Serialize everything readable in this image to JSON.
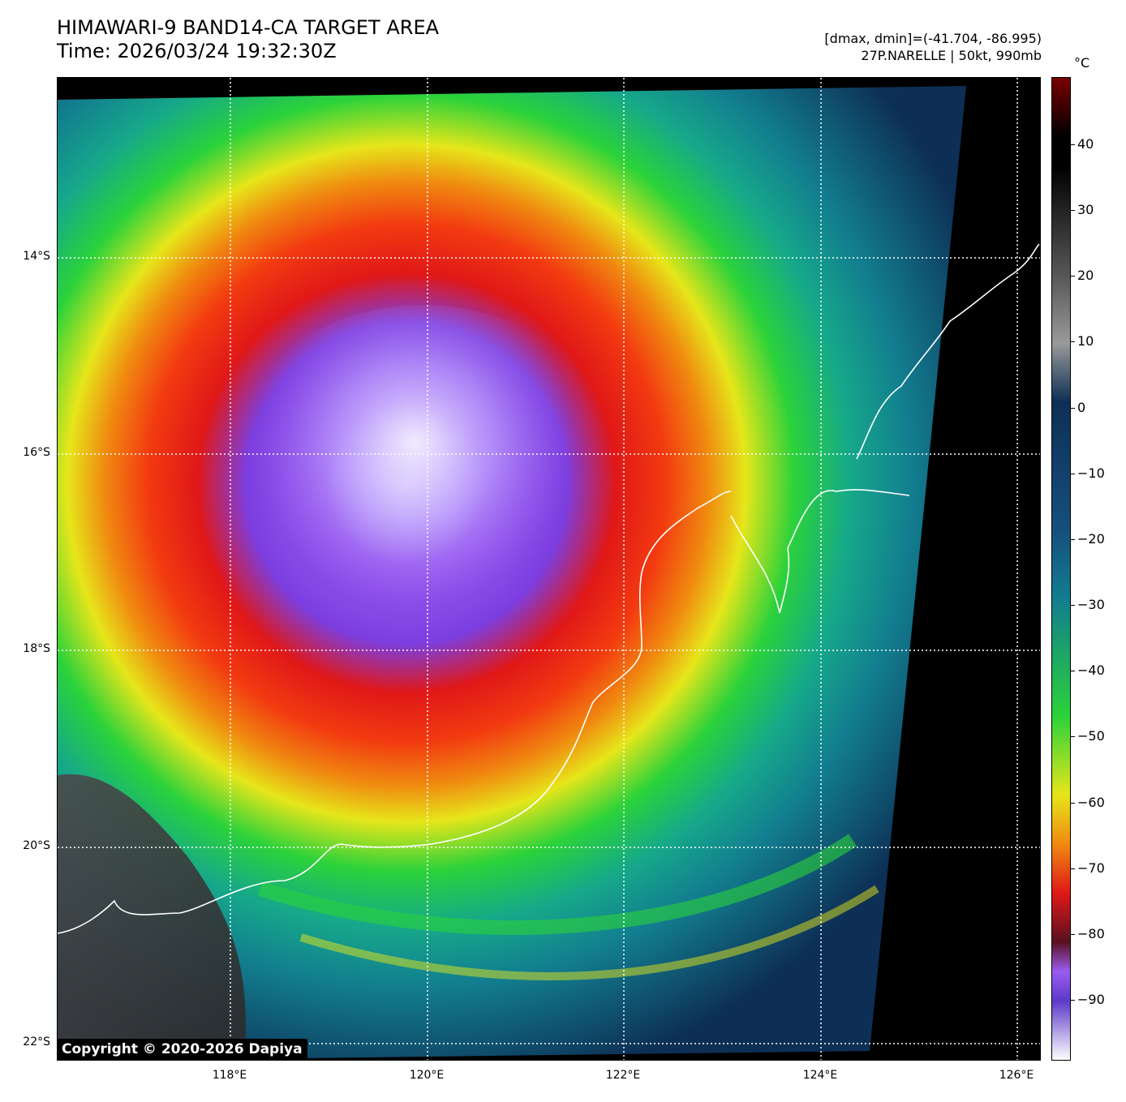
{
  "header": {
    "title_line1": "HIMAWARI-9 BAND14-CA TARGET AREA",
    "title_line2": "Time: 2026/03/24 19:32:30Z",
    "range_text": "[dmax, dmin]=(-41.704, -86.995)",
    "storm_text": "27P.NARELLE | 50kt, 990mb"
  },
  "map": {
    "lat_ticks": [
      "14°S",
      "16°S",
      "18°S",
      "20°S",
      "22°S"
    ],
    "lon_ticks": [
      "118°E",
      "120°E",
      "122°E",
      "124°E",
      "126°E"
    ],
    "storm": "27P.NARELLE",
    "intensity_kt": 50,
    "pressure_mb": 990
  },
  "colorbar": {
    "unit": "°C",
    "ticks": [
      "40",
      "30",
      "20",
      "10",
      "0",
      "−10",
      "−20",
      "−30",
      "−40",
      "−50",
      "−60",
      "−70",
      "−80",
      "−90"
    ],
    "colors": {
      "warm_top": "#7a0000",
      "black": "#000000",
      "gray": "#9a9a9a",
      "dark_blue": "#0d2f55",
      "teal": "#127d8f",
      "green": "#2bd23a",
      "yellow": "#e6e61a",
      "orange": "#f08a10",
      "red": "#e01818",
      "purple": "#9a5cf0",
      "cold_bottom": "#ffffff"
    }
  },
  "footer": {
    "copyright": "Copyright © 2020-2026 Dapiya"
  }
}
